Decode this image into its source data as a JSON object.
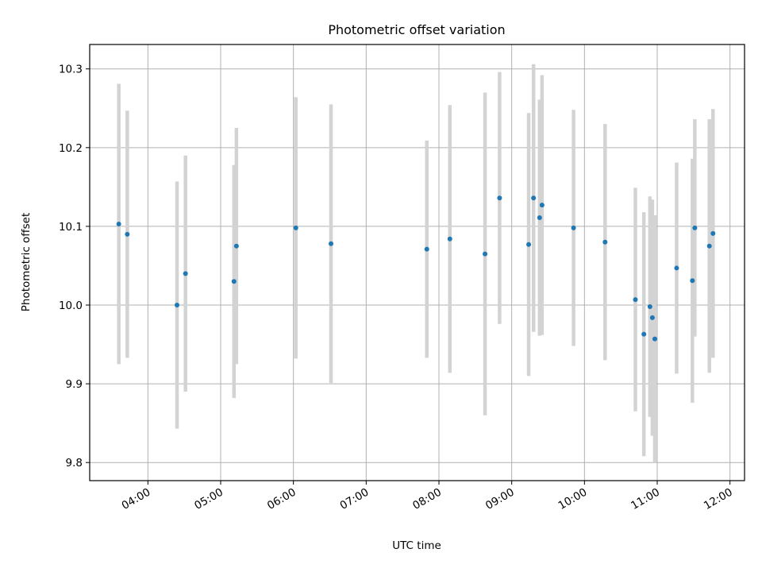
{
  "chart_data": {
    "type": "scatter",
    "title": "Photometric offset variation",
    "xlabel": "UTC time",
    "ylabel": "Photometric offset",
    "x_range_hours": [
      3.2,
      12.2
    ],
    "xticks": [
      "04:00",
      "05:00",
      "06:00",
      "07:00",
      "08:00",
      "09:00",
      "10:00",
      "11:00",
      "12:00"
    ],
    "ylim": [
      9.777,
      10.331
    ],
    "yticks": [
      "9.8",
      "9.9",
      "10.0",
      "10.1",
      "10.2",
      "10.3"
    ],
    "grid": true,
    "colors": {
      "point": "#1f77b4",
      "errorbar": "#d3d3d3",
      "grid": "#b0b0b0"
    },
    "points": [
      {
        "time": "03:36",
        "y": 10.103,
        "yerr": 0.178
      },
      {
        "time": "03:43",
        "y": 10.09,
        "yerr": 0.157
      },
      {
        "time": "04:24",
        "y": 10.0,
        "yerr": 0.157
      },
      {
        "time": "04:31",
        "y": 10.04,
        "yerr": 0.15
      },
      {
        "time": "05:11",
        "y": 10.03,
        "yerr": 0.148
      },
      {
        "time": "05:13",
        "y": 10.075,
        "yerr": 0.15
      },
      {
        "time": "06:02",
        "y": 10.098,
        "yerr": 0.166
      },
      {
        "time": "06:31",
        "y": 10.078,
        "yerr": 0.177
      },
      {
        "time": "07:50",
        "y": 10.071,
        "yerr": 0.138
      },
      {
        "time": "08:09",
        "y": 10.084,
        "yerr": 0.17
      },
      {
        "time": "08:38",
        "y": 10.065,
        "yerr": 0.205
      },
      {
        "time": "08:50",
        "y": 10.136,
        "yerr": 0.16
      },
      {
        "time": "09:14",
        "y": 10.077,
        "yerr": 0.167
      },
      {
        "time": "09:18",
        "y": 10.136,
        "yerr": 0.17
      },
      {
        "time": "09:23",
        "y": 10.111,
        "yerr": 0.15
      },
      {
        "time": "09:25",
        "y": 10.127,
        "yerr": 0.165
      },
      {
        "time": "09:51",
        "y": 10.098,
        "yerr": 0.15
      },
      {
        "time": "10:17",
        "y": 10.08,
        "yerr": 0.15
      },
      {
        "time": "10:42",
        "y": 10.007,
        "yerr": 0.142
      },
      {
        "time": "10:49",
        "y": 9.963,
        "yerr": 0.155
      },
      {
        "time": "10:54",
        "y": 9.998,
        "yerr": 0.14
      },
      {
        "time": "10:56",
        "y": 9.984,
        "yerr": 0.15
      },
      {
        "time": "10:58",
        "y": 9.957,
        "yerr": 0.157
      },
      {
        "time": "11:16",
        "y": 10.047,
        "yerr": 0.134
      },
      {
        "time": "11:29",
        "y": 10.031,
        "yerr": 0.155
      },
      {
        "time": "11:31",
        "y": 10.098,
        "yerr": 0.138
      },
      {
        "time": "11:43",
        "y": 10.075,
        "yerr": 0.161
      },
      {
        "time": "11:46",
        "y": 10.091,
        "yerr": 0.158
      }
    ]
  }
}
